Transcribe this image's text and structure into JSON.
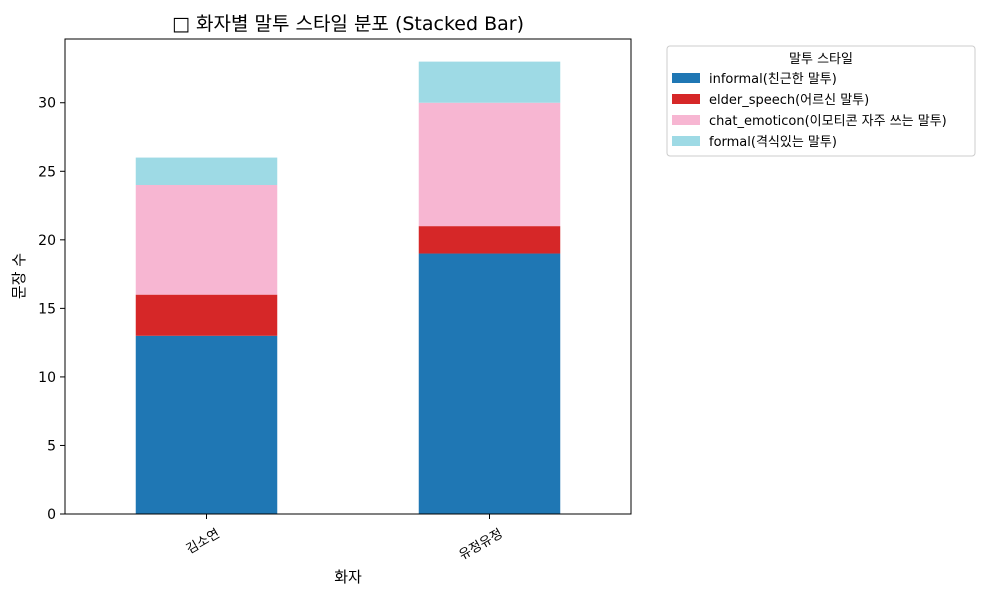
{
  "chart_data": {
    "type": "bar",
    "stacked": true,
    "title": "□ 화자별 말투 스타일 분포 (Stacked Bar)",
    "xlabel": "화자",
    "ylabel": "문장 수",
    "categories": [
      "김소연",
      "유정유정"
    ],
    "ylim": [
      0,
      34.65
    ],
    "yticks": [
      0,
      5,
      10,
      15,
      20,
      25,
      30
    ],
    "grid": false,
    "legend": {
      "title": "말투 스타일",
      "placement": "outside-top-right"
    },
    "series": [
      {
        "name": "informal(친근한 말투)",
        "values": [
          13,
          19
        ],
        "color": "#1f77b4"
      },
      {
        "name": "elder_speech(어르신 말투)",
        "values": [
          3,
          2
        ],
        "color": "#d62728"
      },
      {
        "name": "chat_emoticon(이모티콘 자주 쓰는 말투)",
        "values": [
          8,
          9
        ],
        "color": "#f7b6d2"
      },
      {
        "name": "formal(격식있는 말투)",
        "values": [
          2,
          3
        ],
        "color": "#9edae5"
      }
    ]
  }
}
